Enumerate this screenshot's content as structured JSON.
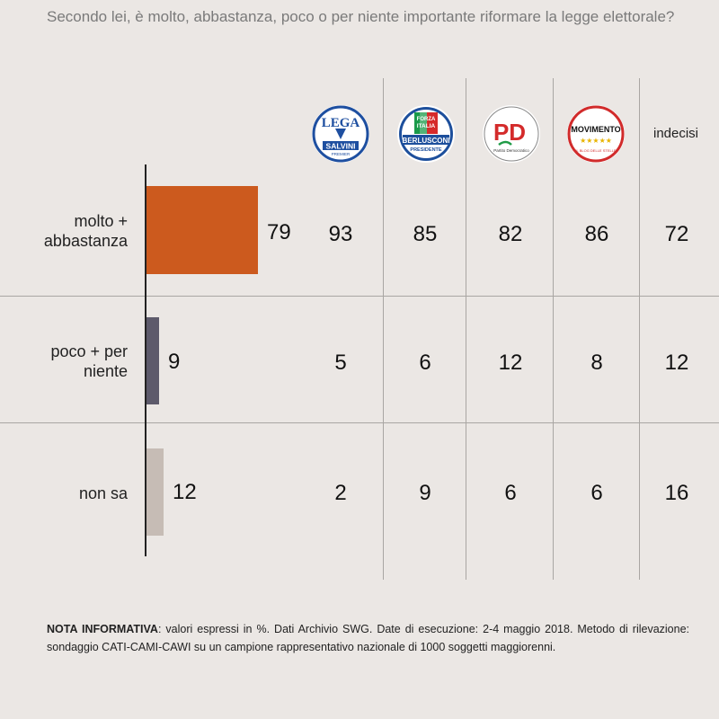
{
  "question": "Secondo lei, è molto, abbastanza, poco o per niente importante riformare la legge elettorale?",
  "columns": [
    {
      "key": "lega",
      "icon": "lega-salvini-logo",
      "logo_text": [
        "LEGA",
        "SALVINI",
        "PREMIER"
      ]
    },
    {
      "key": "forza_italia",
      "icon": "forza-italia-logo",
      "logo_text": [
        "FORZA",
        "ITALIA",
        "BERLUSCONI",
        "PRESIDENTE"
      ]
    },
    {
      "key": "pd",
      "icon": "pd-logo",
      "logo_text": [
        "PD",
        "Partito Democratico"
      ]
    },
    {
      "key": "m5s",
      "icon": "movimento-5-stelle-logo",
      "logo_text": [
        "MOVIMENTO",
        "★★★★★",
        "IL BLOG DELLE STELLE"
      ]
    },
    {
      "key": "indecisi",
      "label": "indecisi"
    }
  ],
  "chart_data": {
    "type": "bar",
    "categories": [
      "molto + abbastanza",
      "poco + per niente",
      "non sa"
    ],
    "values": [
      79,
      9,
      12
    ],
    "colors": [
      "#cc5a1e",
      "#5d5a6b",
      "#c6bcb5"
    ],
    "table": [
      [
        93,
        85,
        82,
        86,
        72
      ],
      [
        5,
        6,
        12,
        8,
        12
      ],
      [
        2,
        9,
        6,
        6,
        16
      ]
    ]
  },
  "rows": [
    {
      "label_lines": [
        "molto +",
        "abbastanza"
      ],
      "value": "79",
      "cells": [
        "93",
        "85",
        "82",
        "86",
        "72"
      ]
    },
    {
      "label_lines": [
        "poco + per",
        "niente"
      ],
      "value": "9",
      "cells": [
        "5",
        "6",
        "12",
        "8",
        "12"
      ]
    },
    {
      "label_lines": [
        "non sa"
      ],
      "value": "12",
      "cells": [
        "2",
        "9",
        "6",
        "6",
        "16"
      ]
    }
  ],
  "note": {
    "heading": "NOTA INFORMATIVA",
    "text": ": valori espressi in %. Dati Archivio SWG. Date di esecuzione: 2-4 maggio 2018. Metodo di rilevazione: sondaggio CATI-CAMI-CAWI su un campione rappresentativo nazionale di 1000 soggetti maggiorenni."
  }
}
